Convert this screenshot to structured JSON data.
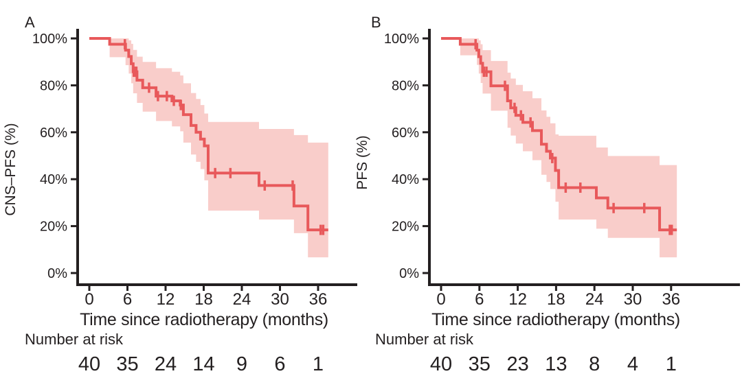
{
  "figure": {
    "background": "#ffffff",
    "curve_color": "#e8595b",
    "band_color": "#f9cdca",
    "axis_color": "#231f20"
  },
  "panels": [
    {
      "letter": "A",
      "ylabel": "CNS–PFS (%)",
      "xlabel": "Time since radiotherapy (months)",
      "risk_label": "Number at risk",
      "y_ticks": [
        {
          "v": 0,
          "label": "0%"
        },
        {
          "v": 20,
          "label": "20%"
        },
        {
          "v": 40,
          "label": "40%"
        },
        {
          "v": 60,
          "label": "60%"
        },
        {
          "v": 80,
          "label": "80%"
        },
        {
          "v": 100,
          "label": "100%"
        }
      ],
      "x_ticks": [
        {
          "v": 0,
          "label": "0"
        },
        {
          "v": 6,
          "label": "6"
        },
        {
          "v": 12,
          "label": "12"
        },
        {
          "v": 18,
          "label": "18"
        },
        {
          "v": 24,
          "label": "24"
        },
        {
          "v": 30,
          "label": "30"
        },
        {
          "v": 36,
          "label": "36"
        }
      ],
      "risk_counts": [
        40,
        35,
        24,
        14,
        9,
        6,
        1
      ]
    },
    {
      "letter": "B",
      "ylabel": "PFS (%)",
      "xlabel": "Time since radiotherapy (months)",
      "risk_label": "Number at risk",
      "y_ticks": [
        {
          "v": 0,
          "label": "0%"
        },
        {
          "v": 20,
          "label": "20%"
        },
        {
          "v": 40,
          "label": "40%"
        },
        {
          "v": 60,
          "label": "60%"
        },
        {
          "v": 80,
          "label": "80%"
        },
        {
          "v": 100,
          "label": "100%"
        }
      ],
      "x_ticks": [
        {
          "v": 0,
          "label": "0"
        },
        {
          "v": 6,
          "label": "6"
        },
        {
          "v": 12,
          "label": "12"
        },
        {
          "v": 18,
          "label": "18"
        },
        {
          "v": 24,
          "label": "24"
        },
        {
          "v": 30,
          "label": "30"
        },
        {
          "v": 36,
          "label": "36"
        }
      ],
      "risk_counts": [
        40,
        35,
        23,
        13,
        8,
        4,
        1
      ]
    }
  ],
  "chart_data": [
    {
      "type": "line",
      "subtype": "kaplan-meier-step",
      "title": "A",
      "xlabel": "Time since radiotherapy (months)",
      "ylabel": "CNS–PFS (%)",
      "xlim": [
        0,
        38
      ],
      "ylim": [
        0,
        100
      ],
      "grid": false,
      "legend": "none",
      "steps": [
        [
          0,
          100,
          100,
          100
        ],
        [
          3.2,
          97.5,
          92.0,
          100
        ],
        [
          5.7,
          95.0,
          88.6,
          100
        ],
        [
          6.2,
          92.3,
          85.0,
          99.2
        ],
        [
          6.6,
          89.2,
          80.9,
          97.7
        ],
        [
          6.9,
          85.8,
          76.6,
          95.1
        ],
        [
          7.5,
          82.2,
          72.5,
          92.2
        ],
        [
          8.4,
          79.0,
          68.8,
          90.0
        ],
        [
          10.5,
          75.4,
          64.8,
          87.3
        ],
        [
          13.0,
          73.4,
          62.5,
          85.8
        ],
        [
          14.3,
          71.6,
          60.4,
          84.2
        ],
        [
          14.8,
          67.5,
          55.6,
          80.9
        ],
        [
          16.0,
          62.9,
          50.5,
          76.7
        ],
        [
          16.8,
          60.0,
          47.4,
          74.2
        ],
        [
          17.5,
          57.1,
          44.3,
          71.6
        ],
        [
          18.1,
          54.2,
          39.5,
          68.0
        ],
        [
          18.7,
          42.6,
          26.6,
          64.4
        ],
        [
          26.7,
          37.3,
          22.8,
          61.4
        ],
        [
          32.2,
          28.6,
          17.0,
          58.8
        ],
        [
          34.4,
          18.4,
          6.7,
          55.6
        ]
      ],
      "end_time": 37.6,
      "censors": [
        [
          5.6,
          97.5
        ],
        [
          7.0,
          85.8
        ],
        [
          7.2,
          85.8
        ],
        [
          7.4,
          85.8
        ],
        [
          9.4,
          79.0
        ],
        [
          10.8,
          75.4
        ],
        [
          12.2,
          75.4
        ],
        [
          13.3,
          73.4
        ],
        [
          14.4,
          71.6
        ],
        [
          19.8,
          42.6
        ],
        [
          22.2,
          42.6
        ],
        [
          27.6,
          37.3
        ],
        [
          32.0,
          37.3
        ],
        [
          36.4,
          18.4
        ],
        [
          36.8,
          18.4
        ]
      ],
      "risk_table": {
        "times": [
          0,
          6,
          12,
          18,
          24,
          30,
          36
        ],
        "counts": [
          40,
          35,
          24,
          14,
          9,
          6,
          1
        ]
      }
    },
    {
      "type": "line",
      "subtype": "kaplan-meier-step",
      "title": "B",
      "xlabel": "Time since radiotherapy (months)",
      "ylabel": "PFS (%)",
      "xlim": [
        0,
        38
      ],
      "ylim": [
        0,
        100
      ],
      "grid": false,
      "legend": "none",
      "steps": [
        [
          0,
          100,
          100,
          100
        ],
        [
          3.0,
          97.5,
          92.8,
          100
        ],
        [
          5.6,
          95.0,
          88.7,
          100
        ],
        [
          5.9,
          92.2,
          85.0,
          99.2
        ],
        [
          6.2,
          89.4,
          81.0,
          97.5
        ],
        [
          6.5,
          85.8,
          76.5,
          95.0
        ],
        [
          7.8,
          79.8,
          69.2,
          90.4
        ],
        [
          10.4,
          73.4,
          61.9,
          85.4
        ],
        [
          10.9,
          70.4,
          58.6,
          82.9
        ],
        [
          11.7,
          67.2,
          55.2,
          80.2
        ],
        [
          12.8,
          64.2,
          51.9,
          77.5
        ],
        [
          14.3,
          60.7,
          48.1,
          74.5
        ],
        [
          15.7,
          54.9,
          41.9,
          69.3
        ],
        [
          16.5,
          51.9,
          38.8,
          66.6
        ],
        [
          17.1,
          49.0,
          35.8,
          63.8
        ],
        [
          17.9,
          43.7,
          30.4,
          59.1
        ],
        [
          18.4,
          36.4,
          22.8,
          58.5
        ],
        [
          24.3,
          32.0,
          18.9,
          53.5
        ],
        [
          26.1,
          27.7,
          15.0,
          49.9
        ],
        [
          34.2,
          18.4,
          6.7,
          46.0
        ]
      ],
      "end_time": 36.9,
      "censors": [
        [
          5.4,
          97.5
        ],
        [
          6.7,
          85.8
        ],
        [
          7.1,
          85.8
        ],
        [
          10.0,
          79.8
        ],
        [
          11.5,
          70.4
        ],
        [
          12.5,
          67.2
        ],
        [
          14.0,
          64.2
        ],
        [
          17.4,
          49.0
        ],
        [
          19.5,
          36.4
        ],
        [
          21.8,
          36.4
        ],
        [
          27.0,
          27.7
        ],
        [
          31.8,
          27.7
        ],
        [
          35.8,
          18.4
        ],
        [
          36.1,
          18.4
        ]
      ],
      "risk_table": {
        "times": [
          0,
          6,
          12,
          18,
          24,
          30,
          36
        ],
        "counts": [
          40,
          35,
          23,
          13,
          8,
          4,
          1
        ]
      }
    }
  ]
}
